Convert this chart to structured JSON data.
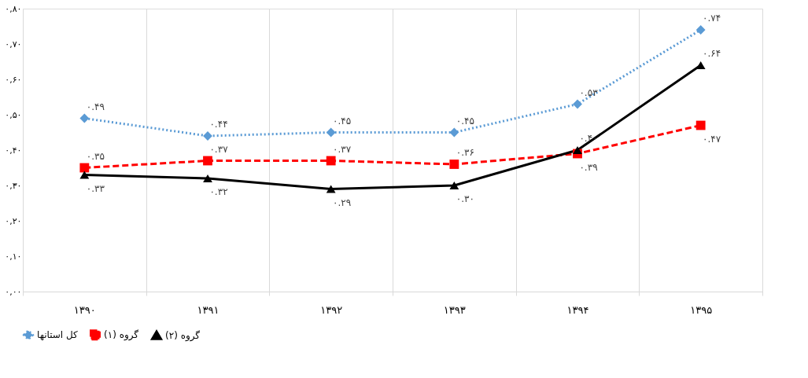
{
  "chart_data": {
    "type": "line",
    "categories": [
      "۱۳۹۰",
      "۱۳۹۱",
      "۱۳۹۲",
      "۱۳۹۳",
      "۱۳۹۴",
      "۱۳۹۵"
    ],
    "ylim": [
      0,
      0.8
    ],
    "yticks": [
      {
        "value": 0,
        "label": "۰,۰۰"
      },
      {
        "value": 0.1,
        "label": "۰,۱۰"
      },
      {
        "value": 0.2,
        "label": "۰,۲۰"
      },
      {
        "value": 0.3,
        "label": "۰,۳۰"
      },
      {
        "value": 0.4,
        "label": "۰,۴۰"
      },
      {
        "value": 0.5,
        "label": "۰,۵۰"
      },
      {
        "value": 0.6,
        "label": "۰,۶۰"
      },
      {
        "value": 0.7,
        "label": "۰,۷۰"
      },
      {
        "value": 0.8,
        "label": "۰,۸۰"
      }
    ],
    "grid": "x",
    "legend": "bottom",
    "series": [
      {
        "name": "کل استانها",
        "color": "#5b9bd5",
        "marker": "diamond",
        "line_style": "dotted",
        "values": [
          0.49,
          0.44,
          0.45,
          0.45,
          0.53,
          0.74
        ],
        "value_labels": [
          "۰.۴۹",
          "۰.۴۴",
          "۰.۴۵",
          "۰.۴۵",
          "۰.۵۳",
          "۰.۷۴"
        ]
      },
      {
        "name": "گروه (۱)",
        "color": "#ff0000",
        "marker": "square",
        "line_style": "dashed",
        "values": [
          0.35,
          0.37,
          0.37,
          0.36,
          0.39,
          0.47
        ],
        "value_labels": [
          "۰.۳۵",
          "۰.۳۷",
          "۰.۳۷",
          "۰.۳۶",
          "۰.۳۹",
          "۰.۴۷"
        ]
      },
      {
        "name": "گروه (۲)",
        "color": "#000000",
        "marker": "triangle",
        "line_style": "solid",
        "values": [
          0.33,
          0.32,
          0.29,
          0.3,
          0.4,
          0.64
        ],
        "value_labels": [
          "۰.۳۳",
          "۰.۳۲",
          "۰.۲۹",
          "۰.۳۰",
          "۰.۴۰",
          "۰.۶۴"
        ]
      }
    ]
  }
}
